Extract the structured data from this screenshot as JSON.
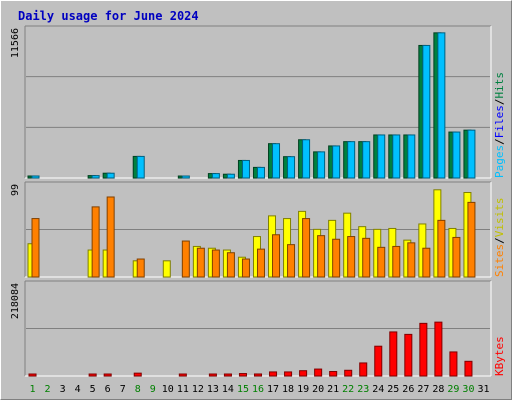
{
  "chart_data": {
    "type": "bar",
    "title": "Daily usage for June 2024",
    "categories": [
      "1",
      "2",
      "3",
      "4",
      "5",
      "6",
      "7",
      "8",
      "9",
      "10",
      "11",
      "12",
      "13",
      "14",
      "15",
      "16",
      "17",
      "18",
      "19",
      "20",
      "21",
      "22",
      "23",
      "24",
      "25",
      "26",
      "27",
      "28",
      "29",
      "30",
      "31"
    ],
    "weekend_days": [
      "1",
      "2",
      "8",
      "9",
      "15",
      "16",
      "22",
      "23",
      "29",
      "30"
    ],
    "colors": {
      "hits": "#008040",
      "files": "#00c0ff",
      "pages": "#00ffff",
      "visits": "#ffff00",
      "sites": "#ff8000",
      "kbytes": "#ff0000",
      "weekday_label": "#000000",
      "weekend_label": "#008000"
    },
    "panels": [
      {
        "name": "Hits / Files / Pages",
        "axis_max_label": "11566",
        "ylim": [
          0,
          11566
        ],
        "legend": [
          {
            "label": "Pages",
            "color": "#00c0ff"
          },
          {
            "label": "/",
            "color": "#000000"
          },
          {
            "label": "Files",
            "color": "#0000ff"
          },
          {
            "label": "/",
            "color": "#000000"
          },
          {
            "label": "Hits",
            "color": "#008040"
          }
        ],
        "series": [
          {
            "name": "Hits",
            "values": [
              160,
              0,
              0,
              0,
              190,
              380,
              0,
              1710,
              0,
              0,
              80,
              0,
              350,
              300,
              1390,
              840,
              2720,
              1690,
              3030,
              2070,
              2540,
              2880,
              2880,
              3410,
              3410,
              3410,
              10500,
              11500,
              3640,
              3790,
              0
            ]
          },
          {
            "name": "Files",
            "values": [
              160,
              0,
              0,
              0,
              190,
              380,
              0,
              1710,
              0,
              0,
              80,
              0,
              350,
              300,
              1390,
              840,
              2720,
              1690,
              3030,
              2070,
              2540,
              2880,
              2880,
              3410,
              3410,
              3410,
              10500,
              11500,
              3640,
              3790,
              0
            ]
          }
        ]
      },
      {
        "name": "Visits / Sites",
        "axis_max_label": "99",
        "ylim": [
          0,
          99
        ],
        "legend": [
          {
            "label": "Sites",
            "color": "#ff8000"
          },
          {
            "label": "/",
            "color": "#000000"
          },
          {
            "label": "Visits",
            "color": "#c0c000"
          }
        ],
        "series": [
          {
            "name": "Visits",
            "values": [
              37,
              0,
              0,
              0,
              30,
              30,
              0,
              18,
              0,
              18,
              0,
              34,
              32,
              30,
              22,
              45,
              68,
              65,
              73,
              53,
              63,
              71,
              56,
              53,
              54,
              41,
              59,
              97,
              54,
              94,
              0
            ]
          },
          {
            "name": "Sites",
            "values": [
              65,
              0,
              0,
              0,
              78,
              89,
              0,
              20,
              0,
              0,
              40,
              32,
              30,
              27,
              20,
              31,
              47,
              36,
              65,
              46,
              42,
              45,
              43,
              33,
              34,
              38,
              32,
              63,
              44,
              83,
              0
            ]
          }
        ]
      },
      {
        "name": "KBytes",
        "axis_max_label": "218084",
        "ylim": [
          0,
          218084
        ],
        "legend": [
          {
            "label": "KBytes",
            "color": "#ff0000"
          }
        ],
        "series": [
          {
            "name": "KBytes",
            "values": [
              3000,
              0,
              0,
              0,
              3000,
              3000,
              0,
              7000,
              0,
              0,
              3000,
              0,
              3000,
              3000,
              6000,
              5000,
              10000,
              10000,
              13000,
              17000,
              11000,
              14000,
              32000,
              73000,
              108000,
              102000,
              129000,
              132000,
              59000,
              36000,
              0
            ]
          }
        ]
      }
    ]
  }
}
